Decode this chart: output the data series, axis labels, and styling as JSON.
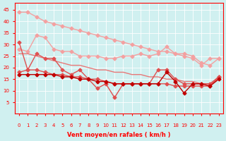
{
  "x": [
    0,
    1,
    2,
    3,
    4,
    5,
    6,
    7,
    8,
    9,
    10,
    11,
    12,
    13,
    14,
    15,
    16,
    17,
    18,
    19,
    20,
    21,
    22,
    23
  ],
  "line1": [
    44,
    44,
    42,
    40,
    39,
    38,
    37,
    36,
    35,
    34,
    33,
    32,
    31,
    30,
    29,
    28,
    27,
    27,
    26,
    26,
    25,
    22,
    21,
    24
  ],
  "line2": [
    28,
    27,
    34,
    33,
    28,
    27,
    27,
    25,
    25,
    25,
    24,
    24,
    25,
    25,
    26,
    25,
    26,
    29,
    26,
    25,
    24,
    21,
    24,
    24
  ],
  "line3": [
    31,
    19,
    26,
    24,
    24,
    19,
    17,
    19,
    15,
    11,
    13,
    7,
    13,
    13,
    13,
    13,
    19,
    19,
    15,
    13,
    13,
    13,
    13,
    16
  ],
  "line4": [
    18,
    19,
    19,
    18,
    17,
    17,
    16,
    16,
    15,
    15,
    14,
    13,
    13,
    13,
    13,
    13,
    13,
    13,
    12,
    12,
    12,
    12,
    12,
    16
  ],
  "line5": [
    26,
    26,
    25,
    24,
    23,
    22,
    21,
    21,
    20,
    19,
    19,
    18,
    18,
    17,
    17,
    16,
    16,
    15,
    15,
    14,
    14,
    13,
    13,
    15
  ],
  "line6": [
    17,
    17,
    17,
    17,
    17,
    16,
    16,
    15,
    15,
    14,
    14,
    13,
    13,
    13,
    13,
    13,
    13,
    18,
    14,
    9,
    13,
    13,
    12,
    15
  ],
  "colors": {
    "light_pink1": "#f4a0a0",
    "light_pink2": "#f4a0a0",
    "medium_red1": "#e05050",
    "medium_red2": "#e05050",
    "dark_red1": "#c00000",
    "dark_red2": "#c00000"
  },
  "bg_color": "#d0f0f0",
  "grid_color": "#ffffff",
  "axis_color": "#ff0000",
  "xlabel": "Vent moyen/en rafales ( km/h )",
  "ylim": [
    0,
    48
  ],
  "xlim": [
    0,
    23
  ],
  "yticks": [
    5,
    10,
    15,
    20,
    25,
    30,
    35,
    40,
    45
  ],
  "xticks": [
    0,
    1,
    2,
    3,
    4,
    5,
    6,
    7,
    8,
    9,
    10,
    11,
    12,
    13,
    14,
    15,
    16,
    17,
    18,
    19,
    20,
    21,
    22,
    23
  ]
}
